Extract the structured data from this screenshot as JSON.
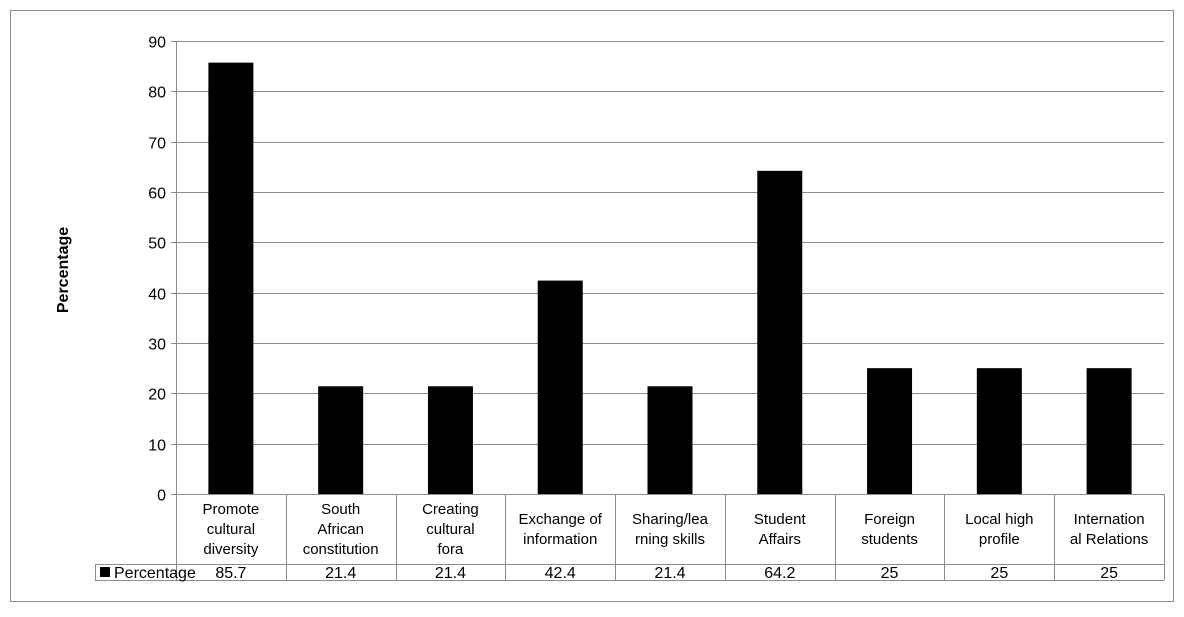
{
  "chart_data": {
    "type": "bar",
    "title": "",
    "xlabel": "",
    "ylabel": "Percentage",
    "ylim": [
      0,
      90
    ],
    "yticks": [
      0,
      10,
      20,
      30,
      40,
      50,
      60,
      70,
      80,
      90
    ],
    "grid": true,
    "legend": "data-table-left",
    "bar_color": "#000000",
    "categories": [
      [
        "Promote",
        "cultural",
        "diversity"
      ],
      [
        "South",
        "African",
        "constitution"
      ],
      [
        "Creating",
        "cultural",
        "fora"
      ],
      [
        "Exchange of",
        "information"
      ],
      [
        "Sharing/lea",
        "rning skills"
      ],
      [
        "Student",
        "Affairs"
      ],
      [
        "Foreign",
        "students"
      ],
      [
        "Local high",
        "profile"
      ],
      [
        "Internation",
        "al Relations"
      ]
    ],
    "series": [
      {
        "name": "Percentage",
        "values": [
          85.7,
          21.4,
          21.4,
          42.4,
          21.4,
          64.2,
          25,
          25,
          25
        ],
        "value_labels": [
          "85.7",
          "21.4",
          "21.4",
          "42.4",
          "21.4",
          "64.2",
          "25",
          "25",
          "25"
        ]
      }
    ]
  }
}
